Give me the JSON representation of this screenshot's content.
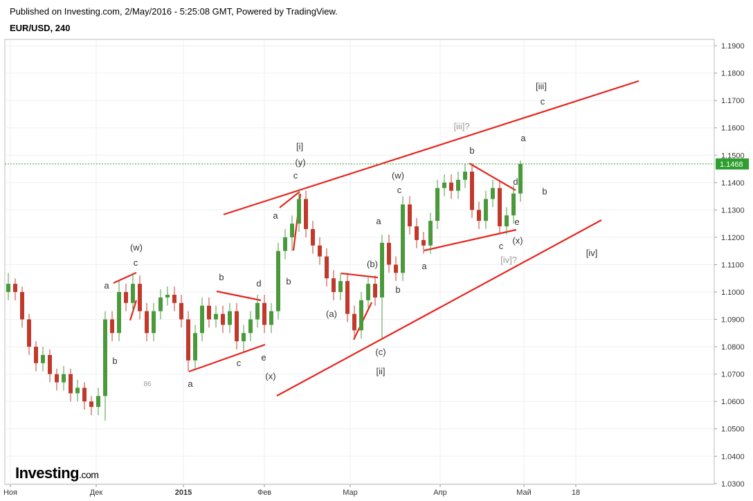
{
  "header": {
    "published": "Published on Investing.com, 2/May/2016 - 5:25:08 GMT, Powered by TradingView.",
    "symbol": "EUR/USD, 240"
  },
  "logo": {
    "name": "Investing",
    "suffix": ".com"
  },
  "chart_data": {
    "type": "candlestick",
    "ohlc": [
      [
        1.1,
        1.107,
        1.097,
        1.103
      ],
      [
        1.103,
        1.105,
        1.097,
        1.1
      ],
      [
        1.1,
        1.102,
        1.087,
        1.09
      ],
      [
        1.09,
        1.092,
        1.077,
        1.08
      ],
      [
        1.08,
        1.082,
        1.071,
        1.074
      ],
      [
        1.074,
        1.08,
        1.071,
        1.077
      ],
      [
        1.077,
        1.079,
        1.067,
        1.07
      ],
      [
        1.07,
        1.072,
        1.064,
        1.067
      ],
      [
        1.067,
        1.073,
        1.064,
        1.07
      ],
      [
        1.07,
        1.072,
        1.06,
        1.063
      ],
      [
        1.063,
        1.068,
        1.06,
        1.065
      ],
      [
        1.065,
        1.067,
        1.057,
        1.06
      ],
      [
        1.06,
        1.062,
        1.055,
        1.058
      ],
      [
        1.058,
        1.065,
        1.055,
        1.062
      ],
      [
        1.062,
        1.093,
        1.053,
        1.09
      ],
      [
        1.09,
        1.093,
        1.082,
        1.085
      ],
      [
        1.085,
        1.104,
        1.082,
        1.1
      ],
      [
        1.1,
        1.103,
        1.093,
        1.096
      ],
      [
        1.096,
        1.107,
        1.093,
        1.103
      ],
      [
        1.103,
        1.106,
        1.09,
        1.093
      ],
      [
        1.093,
        1.096,
        1.082,
        1.085
      ],
      [
        1.085,
        1.096,
        1.082,
        1.093
      ],
      [
        1.093,
        1.101,
        1.09,
        1.098
      ],
      [
        1.098,
        1.102,
        1.095,
        1.099
      ],
      [
        1.099,
        1.102,
        1.093,
        1.096
      ],
      [
        1.096,
        1.099,
        1.087,
        1.09
      ],
      [
        1.09,
        1.093,
        1.071,
        1.075
      ],
      [
        1.075,
        1.088,
        1.072,
        1.085
      ],
      [
        1.085,
        1.098,
        1.082,
        1.095
      ],
      [
        1.095,
        1.098,
        1.087,
        1.09
      ],
      [
        1.09,
        1.095,
        1.087,
        1.092
      ],
      [
        1.092,
        1.095,
        1.085,
        1.088
      ],
      [
        1.088,
        1.096,
        1.085,
        1.093
      ],
      [
        1.093,
        1.096,
        1.079,
        1.082
      ],
      [
        1.082,
        1.088,
        1.078,
        1.085
      ],
      [
        1.085,
        1.093,
        1.082,
        1.09
      ],
      [
        1.09,
        1.099,
        1.087,
        1.096
      ],
      [
        1.096,
        1.099,
        1.085,
        1.088
      ],
      [
        1.088,
        1.096,
        1.085,
        1.093
      ],
      [
        1.093,
        1.118,
        1.09,
        1.115
      ],
      [
        1.115,
        1.123,
        1.112,
        1.12
      ],
      [
        1.12,
        1.128,
        1.115,
        1.125
      ],
      [
        1.125,
        1.1375,
        1.122,
        1.134
      ],
      [
        1.134,
        1.137,
        1.12,
        1.123
      ],
      [
        1.123,
        1.126,
        1.114,
        1.117
      ],
      [
        1.117,
        1.12,
        1.11,
        1.113
      ],
      [
        1.113,
        1.116,
        1.102,
        1.105
      ],
      [
        1.105,
        1.108,
        1.097,
        1.1
      ],
      [
        1.1,
        1.107,
        1.097,
        1.104
      ],
      [
        1.104,
        1.107,
        1.089,
        1.092
      ],
      [
        1.092,
        1.095,
        1.083,
        1.086
      ],
      [
        1.086,
        1.1,
        1.083,
        1.097
      ],
      [
        1.097,
        1.106,
        1.094,
        1.103
      ],
      [
        1.103,
        1.106,
        1.095,
        1.098
      ],
      [
        1.098,
        1.121,
        1.083,
        1.118
      ],
      [
        1.118,
        1.121,
        1.107,
        1.11
      ],
      [
        1.11,
        1.113,
        1.104,
        1.107
      ],
      [
        1.107,
        1.135,
        1.104,
        1.132
      ],
      [
        1.132,
        1.135,
        1.121,
        1.124
      ],
      [
        1.124,
        1.127,
        1.116,
        1.119
      ],
      [
        1.119,
        1.122,
        1.114,
        1.117
      ],
      [
        1.117,
        1.129,
        1.114,
        1.126
      ],
      [
        1.126,
        1.141,
        1.123,
        1.138
      ],
      [
        1.138,
        1.143,
        1.135,
        1.14
      ],
      [
        1.14,
        1.143,
        1.134,
        1.137
      ],
      [
        1.137,
        1.144,
        1.134,
        1.141
      ],
      [
        1.141,
        1.147,
        1.138,
        1.144
      ],
      [
        1.144,
        1.147,
        1.127,
        1.13
      ],
      [
        1.13,
        1.133,
        1.123,
        1.126
      ],
      [
        1.126,
        1.137,
        1.123,
        1.134
      ],
      [
        1.134,
        1.141,
        1.131,
        1.138
      ],
      [
        1.138,
        1.141,
        1.121,
        1.124
      ],
      [
        1.124,
        1.131,
        1.121,
        1.128
      ],
      [
        1.128,
        1.139,
        1.125,
        1.136
      ],
      [
        1.136,
        1.148,
        1.133,
        1.1468
      ]
    ],
    "up_color": "#4a9a3c",
    "down_color": "#c0392b",
    "last_price": 1.1468,
    "last_price_color": "#2e9e2e",
    "xlim": [
      0,
      102.5
    ],
    "xticks": [
      {
        "value": 0.8,
        "label": "Ноя"
      },
      {
        "value": 13.2,
        "label": "Дек"
      },
      {
        "value": 25.8,
        "label": "2015"
      },
      {
        "value": 37.5,
        "label": "Фев"
      },
      {
        "value": 49.9,
        "label": "Мар"
      },
      {
        "value": 62.9,
        "label": "Апр"
      },
      {
        "value": 75,
        "label": "Май"
      },
      {
        "value": 82.5,
        "label": "18"
      }
    ],
    "ylim": [
      1.0297,
      1.1923
    ],
    "yticks": [
      {
        "value": 1.03,
        "label": "1.0300"
      },
      {
        "value": 1.04,
        "label": "1.0400"
      },
      {
        "value": 1.05,
        "label": "1.0500"
      },
      {
        "value": 1.06,
        "label": "1.0600"
      },
      {
        "value": 1.07,
        "label": "1.0700"
      },
      {
        "value": 1.08,
        "label": "1.0800"
      },
      {
        "value": 1.09,
        "label": "1.0900"
      },
      {
        "value": 1.1,
        "label": "1.1000"
      },
      {
        "value": 1.11,
        "label": "1.1100"
      },
      {
        "value": 1.12,
        "label": "1.1200"
      },
      {
        "value": 1.13,
        "label": "1.1300"
      },
      {
        "value": 1.14,
        "label": "1.1400"
      },
      {
        "value": 1.15,
        "label": "1.1500"
      },
      {
        "value": 1.16,
        "label": "1.1600"
      },
      {
        "value": 1.17,
        "label": "1.1700"
      },
      {
        "value": 1.18,
        "label": "1.1800"
      },
      {
        "value": 1.19,
        "label": "1.1900"
      }
    ],
    "grid": true,
    "annotations": [
      "(w)",
      "c",
      "a",
      "b",
      "86",
      "a",
      "b",
      "c",
      "d",
      "e",
      "(x)",
      "[i]",
      "(y)",
      "c",
      "a",
      "b",
      "(a)",
      "(b)",
      "(c)",
      "[ii]",
      "b",
      "a",
      "(w)",
      "c",
      "a",
      "[iii]?",
      "b",
      "a",
      "d",
      "e",
      "c",
      "(x)",
      "[iv]?",
      "[iii]",
      "c",
      "b",
      "[iv]"
    ]
  }
}
